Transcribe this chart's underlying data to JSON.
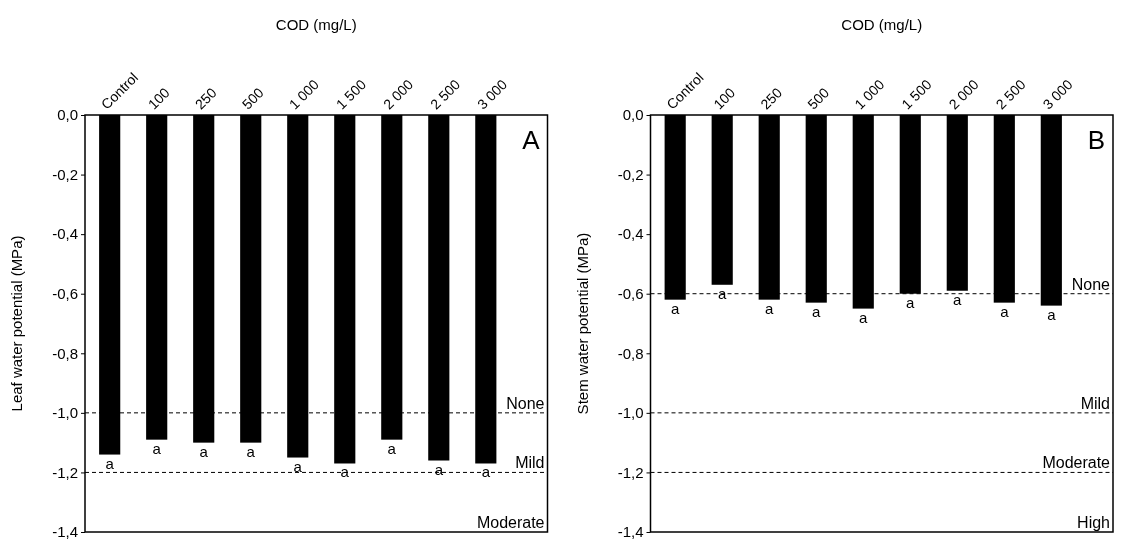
{
  "chart_data": [
    {
      "type": "bar",
      "xlabel": "COD (mg/L)",
      "ylabel": "Leaf water potential (MPa)",
      "categories": [
        "Control",
        "100",
        "250",
        "500",
        "1 000",
        "1 500",
        "2 000",
        "2 500",
        "3 000"
      ],
      "values": [
        -1.14,
        -1.09,
        -1.1,
        -1.1,
        -1.15,
        -1.17,
        -1.09,
        -1.16,
        -1.17
      ],
      "value_labels": [
        "a",
        "a",
        "a",
        "a",
        "a",
        "a",
        "a",
        "a",
        "a"
      ],
      "color": "#000000",
      "ylim": [
        -1.4,
        0
      ],
      "yticks": [
        {
          "value": 0,
          "label": "0,0"
        },
        {
          "value": -0.2,
          "label": "-0,2"
        },
        {
          "value": -0.4,
          "label": "-0,4"
        },
        {
          "value": -0.6,
          "label": "-0,6"
        },
        {
          "value": -0.8,
          "label": "-0,8"
        },
        {
          "value": -1.0,
          "label": "-1,0"
        },
        {
          "value": -1.2,
          "label": "-1,2"
        },
        {
          "value": -1.4,
          "label": "-1,4"
        }
      ],
      "ref_lines": [
        {
          "axis": "y",
          "value": -1.0,
          "label": "None",
          "line_style": "dashed"
        },
        {
          "axis": "y",
          "value": -1.2,
          "label": "Mild",
          "line_style": "dashed"
        }
      ],
      "annotations": [
        "A",
        "Moderate"
      ]
    },
    {
      "type": "bar",
      "xlabel": "COD (mg/L)",
      "ylabel": "Stem water potential (MPa)",
      "categories": [
        "Control",
        "100",
        "250",
        "500",
        "1 000",
        "1 500",
        "2 000",
        "2 500",
        "3 000"
      ],
      "values": [
        -0.62,
        -0.57,
        -0.62,
        -0.63,
        -0.65,
        -0.6,
        -0.59,
        -0.63,
        -0.64
      ],
      "value_labels": [
        "a",
        "a",
        "a",
        "a",
        "a",
        "a",
        "a",
        "a",
        "a"
      ],
      "color": "#000000",
      "ylim": [
        -1.4,
        0
      ],
      "yticks": [
        {
          "value": 0,
          "label": "0,0"
        },
        {
          "value": -0.2,
          "label": "-0,2"
        },
        {
          "value": -0.4,
          "label": "-0,4"
        },
        {
          "value": -0.6,
          "label": "-0,6"
        },
        {
          "value": -0.8,
          "label": "-0,8"
        },
        {
          "value": -1.0,
          "label": "-1,0"
        },
        {
          "value": -1.2,
          "label": "-1,2"
        },
        {
          "value": -1.4,
          "label": "-1,4"
        }
      ],
      "ref_lines": [
        {
          "axis": "y",
          "value": -0.6,
          "label": "None",
          "line_style": "dashed"
        },
        {
          "axis": "y",
          "value": -1.0,
          "label": "Mild",
          "line_style": "dashed"
        },
        {
          "axis": "y",
          "value": -1.2,
          "label": "Moderate",
          "line_style": "dashed"
        }
      ],
      "annotations": [
        "B",
        "High"
      ]
    }
  ]
}
